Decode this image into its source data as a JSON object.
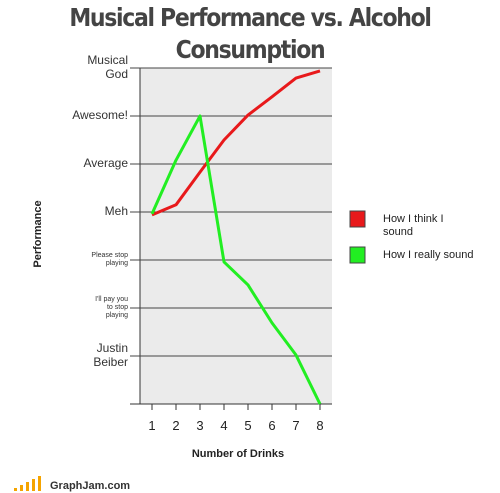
{
  "chart_data": {
    "type": "line",
    "title": "Musical Performance vs. Alcohol Consumption",
    "x_label": "Number of Drinks",
    "y_label": "Performance",
    "footer": "GraphJam.com",
    "x": [
      1,
      2,
      3,
      4,
      5,
      6,
      7,
      8
    ],
    "xlim": [
      0.5,
      8.5
    ],
    "xticks": [
      1,
      2,
      3,
      4,
      5,
      6,
      7,
      8
    ],
    "ylim": [
      0,
      7
    ],
    "yticks": [
      {
        "value": 1,
        "label": "Justin Beiber"
      },
      {
        "value": 2,
        "label": "I'll pay you to stop playing"
      },
      {
        "value": 3,
        "label": "Please stop playing"
      },
      {
        "value": 4,
        "label": "Meh"
      },
      {
        "value": 5,
        "label": "Average"
      },
      {
        "value": 6,
        "label": "Awesome!"
      },
      {
        "value": 7,
        "label": "Musical God"
      }
    ],
    "grid": true,
    "legend": "right",
    "series": [
      {
        "name": "How I think I sound",
        "color": "#e8191b",
        "values": [
          3.94,
          4.15,
          4.83,
          5.5,
          6.02,
          6.4,
          6.79,
          6.94
        ]
      },
      {
        "name": "How I really sound",
        "color": "#22ee22",
        "values": [
          3.96,
          5.08,
          6.0,
          2.96,
          2.48,
          1.69,
          1.02,
          0
        ]
      }
    ]
  }
}
